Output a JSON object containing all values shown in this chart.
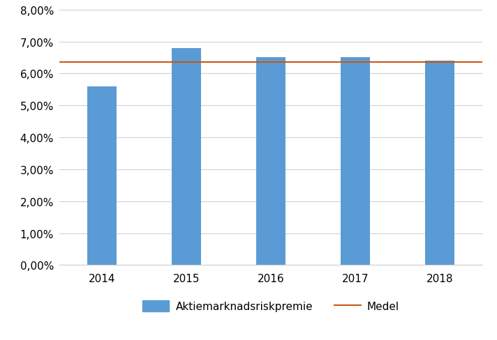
{
  "categories": [
    "2014",
    "2015",
    "2016",
    "2017",
    "2018"
  ],
  "values": [
    0.056,
    0.068,
    0.065,
    0.065,
    0.064
  ],
  "bar_color": "#5B9BD5",
  "mean_value": 0.0636,
  "mean_color": "#C55A11",
  "ylim": [
    0.0,
    0.08
  ],
  "yticks": [
    0.0,
    0.01,
    0.02,
    0.03,
    0.04,
    0.05,
    0.06,
    0.07,
    0.08
  ],
  "ytick_labels": [
    "0,00%",
    "1,00%",
    "2,00%",
    "3,00%",
    "4,00%",
    "5,00%",
    "6,00%",
    "7,00%",
    "8,00%"
  ],
  "legend_bar_label": "Aktiemarknadsriskpremie",
  "legend_line_label": "Medel",
  "background_color": "#FFFFFF",
  "grid_color": "#D0D0D0",
  "bar_width": 0.35,
  "mean_linewidth": 1.5,
  "tick_font_size": 11,
  "legend_font_size": 11
}
